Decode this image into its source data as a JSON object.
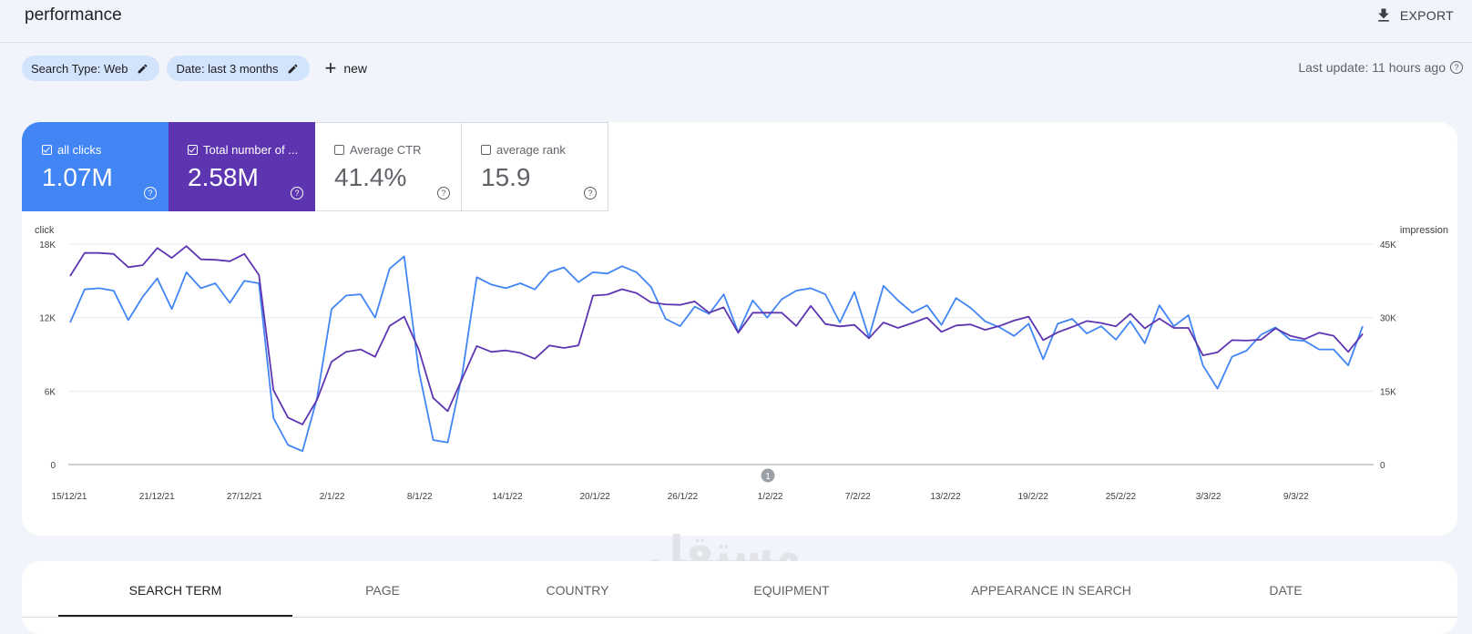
{
  "header": {
    "title": "performance",
    "export_label": "EXPORT",
    "export_icon": "download-icon"
  },
  "filters": {
    "chips": [
      {
        "label": "Search Type: Web",
        "icon": "pencil-icon"
      },
      {
        "label": "Date: last 3 months",
        "icon": "pencil-icon"
      }
    ],
    "new_label": "new",
    "new_icon": "plus-icon"
  },
  "last_update": "Last update: 11 hours ago",
  "metrics": [
    {
      "label": "all clicks",
      "value": "1.07M",
      "checked": true,
      "color": "#4285f4"
    },
    {
      "label": "Total number of ...",
      "value": "2.58M",
      "checked": true,
      "color": "#5e35b1"
    },
    {
      "label": "Average CTR",
      "value": "41.4%",
      "checked": false
    },
    {
      "label": "average rank",
      "value": "15.9",
      "checked": false
    }
  ],
  "chart_data": {
    "type": "line",
    "ylabel_left": "click",
    "ylabel_right": "impression",
    "yticks_left": [
      "18K",
      "12K",
      "6K",
      "0"
    ],
    "yticks_right": [
      "45K",
      "30K",
      "15K",
      "0"
    ],
    "ylim_left": [
      0,
      18000
    ],
    "ylim_right": [
      0,
      45000
    ],
    "grid": true,
    "annotation": "1",
    "xtick_labels": [
      "15/12/21",
      "21/12/21",
      "27/12/21",
      "2/1/22",
      "8/1/22",
      "14/1/22",
      "20/1/22",
      "26/1/22",
      "1/2/22",
      "7/2/22",
      "13/2/22",
      "19/2/22",
      "25/2/22",
      "3/3/22",
      "9/3/22"
    ],
    "series": [
      {
        "axis": "left",
        "color": "#4285f4",
        "values": [
          11600,
          14300,
          14400,
          14200,
          11800,
          13700,
          15200,
          12700,
          15700,
          14400,
          14800,
          13200,
          15000,
          14800,
          3800,
          1600,
          1100,
          5400,
          12700,
          13800,
          13900,
          12000,
          16000,
          17000,
          7700,
          2000,
          1800,
          7400,
          15300,
          14700,
          14400,
          14800,
          14300,
          15700,
          16100,
          14900,
          15700,
          15600,
          16200,
          15700,
          14500,
          11900,
          11300,
          12900,
          12300,
          13900,
          10800,
          13400,
          12000,
          13500,
          14200,
          14400,
          13900,
          11600,
          14100,
          10400,
          14600,
          13400,
          12400,
          13000,
          11400,
          13600,
          12800,
          11700,
          11200,
          10500,
          11500,
          8600,
          11500,
          11900,
          10700,
          11300,
          10200,
          11700,
          9900,
          13000,
          11300,
          12200,
          8100,
          6200,
          8800,
          9300,
          10600,
          11200,
          10200,
          10100,
          9400,
          9400,
          8100,
          11300
        ]
      },
      {
        "axis": "right",
        "color": "#5e35b1",
        "values": [
          38500,
          43200,
          43200,
          43000,
          40300,
          40700,
          44200,
          42200,
          44600,
          41900,
          41800,
          41500,
          43000,
          38700,
          15200,
          9600,
          8200,
          13200,
          21000,
          23000,
          23500,
          22000,
          28300,
          30200,
          23500,
          13600,
          10900,
          17600,
          24200,
          23000,
          23300,
          22800,
          21600,
          24300,
          23800,
          24300,
          34500,
          34700,
          35800,
          35000,
          33100,
          32700,
          32600,
          33300,
          31000,
          32100,
          26900,
          31000,
          31000,
          31000,
          28300,
          32400,
          28700,
          28200,
          28500,
          25800,
          29000,
          27900,
          28900,
          30000,
          27100,
          28400,
          28600,
          27500,
          28300,
          29400,
          30200,
          25400,
          27000,
          28100,
          29300,
          28900,
          28200,
          30800,
          27800,
          29800,
          27900,
          27900,
          22300,
          22900,
          25400,
          25300,
          25500,
          27800,
          26300,
          25600,
          26900,
          26300,
          23000,
          26700
        ]
      }
    ]
  },
  "tabs": {
    "items": [
      "SEARCH TERM",
      "PAGE",
      "COUNTRY",
      "EQUIPMENT",
      "APPEARANCE IN SEARCH",
      "DATE"
    ],
    "active": "SEARCH TERM"
  },
  "watermark": {
    "arabic": "مستقل",
    "latin": "mostaql.com"
  }
}
